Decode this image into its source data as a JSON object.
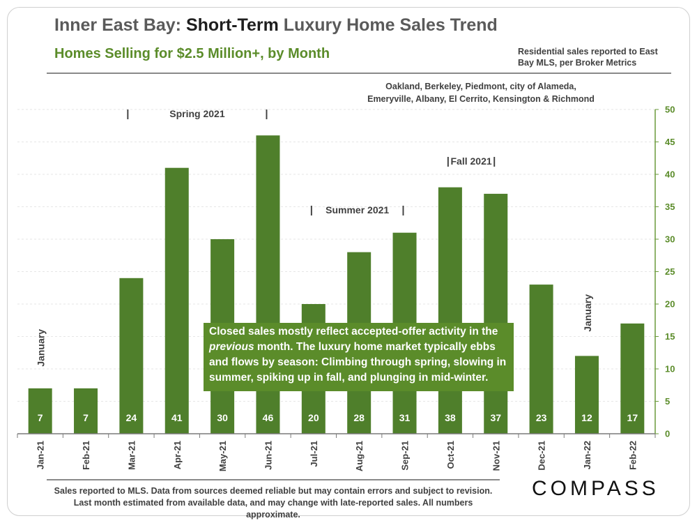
{
  "title": {
    "part1": "Inner East Bay: ",
    "part2": "Short-Term",
    "part3": " Luxury Home Sales Trend"
  },
  "subtitle": "Homes Selling for $2.5 Million+, by Month",
  "source_note": "Residential sales reported to East Bay MLS, per Broker Metrics",
  "region_note": "Oakland, Berkeley, Piedmont, city of Alameda, Emeryville, Albany, El Cerrito, Kensington & Richmond",
  "footnote": "Sales reported to MLS. Data from sources deemed reliable but may contain errors and subject to revision.  Last month estimated from available data, and may change with late-reported sales. All numbers approximate.",
  "logo": "COMPASS",
  "note": {
    "line_a": "Closed sales mostly reflect accepted-offer activity in the ",
    "emph": "previous",
    "line_b": " month. The luxury home market typically ebbs and flows by season: Climbing through spring, slowing in summer, spiking up in fall, and plunging in mid-winter."
  },
  "chart_data": {
    "type": "bar",
    "categories": [
      "Jan-21",
      "Feb-21",
      "Mar-21",
      "Apr-21",
      "May-21",
      "Jun-21",
      "Jul-21",
      "Aug-21",
      "Sep-21",
      "Oct-21",
      "Nov-21",
      "Dec-21",
      "Jan-22",
      "Feb-22"
    ],
    "values": [
      7,
      7,
      24,
      41,
      30,
      46,
      20,
      28,
      31,
      38,
      37,
      23,
      12,
      17
    ],
    "data_labels": [
      "7",
      "7",
      "24",
      "41",
      "30",
      "46",
      "20",
      "28",
      "31",
      "38",
      "37",
      "23",
      "12",
      "17"
    ],
    "ylim": [
      0,
      50
    ],
    "yticks": [
      0,
      5,
      10,
      15,
      20,
      25,
      30,
      35,
      40,
      45,
      50
    ],
    "y_axis_side": "right",
    "grid": true,
    "bar_color": "#4f7f2b",
    "axis_color": "#6a9a3a",
    "season_labels": [
      {
        "text": "Spring 2021",
        "from": 2,
        "to": 5
      },
      {
        "text": "Summer 2021",
        "from": 6,
        "to": 8
      },
      {
        "text": "Fall 2021",
        "from": 9,
        "to": 10
      }
    ],
    "annotations": [
      {
        "text": "January",
        "index": 0
      },
      {
        "text": "January",
        "index": 12
      }
    ]
  }
}
